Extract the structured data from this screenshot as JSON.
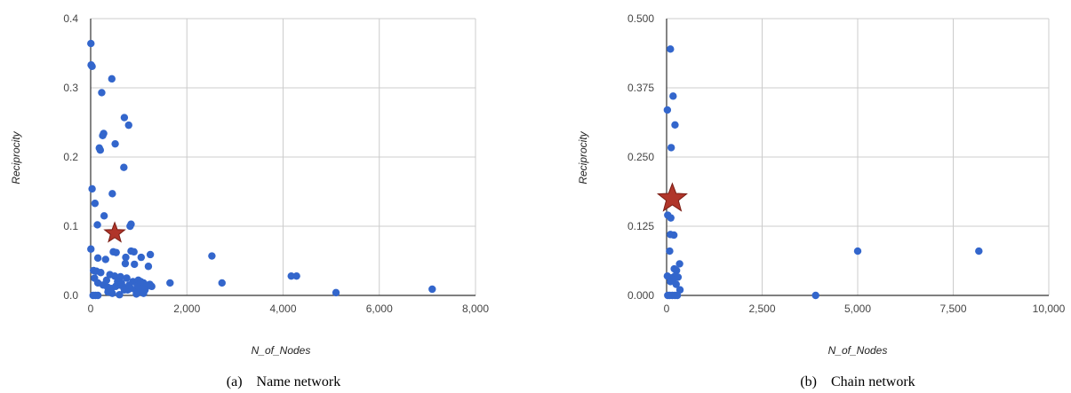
{
  "colors": {
    "point": "#3366cc",
    "star_fill": "#b0352a",
    "star_stroke": "#7a1d14",
    "grid": "#cccccc"
  },
  "chart_data": [
    {
      "type": "scatter",
      "caption": "(a)    Name network",
      "xlabel": "N_of_Nodes",
      "ylabel": "Reciprocity",
      "xlim": [
        0,
        8000
      ],
      "ylim": [
        0,
        0.4
      ],
      "x_ticks": [
        0,
        2000,
        4000,
        6000,
        8000
      ],
      "x_tick_labels": [
        "0",
        "2,000",
        "4,000",
        "6,000",
        "8,000"
      ],
      "y_ticks": [
        0,
        0.1,
        0.2,
        0.3,
        0.4
      ],
      "y_tick_labels": [
        "0.0",
        "0.1",
        "0.2",
        "0.3",
        "0.4"
      ],
      "grid": true,
      "points": [
        [
          5,
          0.364
        ],
        [
          10,
          0.333
        ],
        [
          30,
          0.331
        ],
        [
          440,
          0.313
        ],
        [
          230,
          0.293
        ],
        [
          700,
          0.257
        ],
        [
          790,
          0.246
        ],
        [
          270,
          0.234
        ],
        [
          250,
          0.231
        ],
        [
          510,
          0.219
        ],
        [
          180,
          0.213
        ],
        [
          200,
          0.21
        ],
        [
          690,
          0.185
        ],
        [
          30,
          0.154
        ],
        [
          450,
          0.147
        ],
        [
          90,
          0.133
        ],
        [
          280,
          0.115
        ],
        [
          840,
          0.103
        ],
        [
          820,
          0.1
        ],
        [
          140,
          0.102
        ],
        [
          5,
          0.067
        ],
        [
          840,
          0.064
        ],
        [
          900,
          0.063
        ],
        [
          470,
          0.063
        ],
        [
          530,
          0.062
        ],
        [
          1240,
          0.059
        ],
        [
          1050,
          0.055
        ],
        [
          730,
          0.055
        ],
        [
          150,
          0.054
        ],
        [
          310,
          0.052
        ],
        [
          720,
          0.046
        ],
        [
          910,
          0.045
        ],
        [
          1200,
          0.042
        ],
        [
          60,
          0.036
        ],
        [
          120,
          0.035
        ],
        [
          210,
          0.033
        ],
        [
          400,
          0.03
        ],
        [
          500,
          0.028
        ],
        [
          620,
          0.027
        ],
        [
          750,
          0.025
        ],
        [
          880,
          0.02
        ],
        [
          990,
          0.022
        ],
        [
          1100,
          0.018
        ],
        [
          1150,
          0.012
        ],
        [
          1230,
          0.016
        ],
        [
          80,
          0.025
        ],
        [
          150,
          0.018
        ],
        [
          260,
          0.015
        ],
        [
          350,
          0.012
        ],
        [
          430,
          0.01
        ],
        [
          520,
          0.013
        ],
        [
          600,
          0.015
        ],
        [
          680,
          0.012
        ],
        [
          770,
          0.008
        ],
        [
          830,
          0.01
        ],
        [
          940,
          0.007
        ],
        [
          1010,
          0.005
        ],
        [
          1080,
          0.01
        ],
        [
          1270,
          0.013
        ],
        [
          330,
          0.022
        ],
        [
          560,
          0.02
        ],
        [
          640,
          0.018
        ],
        [
          700,
          0.008
        ],
        [
          800,
          0.015
        ],
        [
          970,
          0.014
        ],
        [
          1040,
          0.02
        ],
        [
          1130,
          0.008
        ],
        [
          360,
          0.005
        ],
        [
          450,
          0.003
        ],
        [
          50,
          0.0
        ],
        [
          100,
          0.0
        ],
        [
          150,
          0.0
        ],
        [
          600,
          0.001
        ],
        [
          950,
          0.002
        ],
        [
          1100,
          0.003
        ],
        [
          1650,
          0.018
        ],
        [
          2520,
          0.057
        ],
        [
          2730,
          0.018
        ],
        [
          4170,
          0.028
        ],
        [
          4280,
          0.028
        ],
        [
          5100,
          0.004
        ],
        [
          7100,
          0.009
        ]
      ],
      "highlight": {
        "marker": "star",
        "x": 500,
        "y": 0.09
      }
    },
    {
      "type": "scatter",
      "caption": "(b)    Chain network",
      "xlabel": "N_of_Nodes",
      "ylabel": "Reciprocity",
      "xlim": [
        0,
        10000
      ],
      "ylim": [
        0,
        0.5
      ],
      "x_ticks": [
        0,
        2500,
        5000,
        7500,
        10000
      ],
      "x_tick_labels": [
        "0",
        "2,500",
        "5,000",
        "7,500",
        "10,000"
      ],
      "y_ticks": [
        0,
        0.125,
        0.25,
        0.375,
        0.5
      ],
      "y_tick_labels": [
        "0.000",
        "0.125",
        "0.250",
        "0.375",
        "0.500"
      ],
      "grid": true,
      "points": [
        [
          100,
          0.445
        ],
        [
          170,
          0.36
        ],
        [
          220,
          0.308
        ],
        [
          20,
          0.335
        ],
        [
          120,
          0.267
        ],
        [
          30,
          0.145
        ],
        [
          110,
          0.14
        ],
        [
          100,
          0.11
        ],
        [
          190,
          0.109
        ],
        [
          80,
          0.08
        ],
        [
          340,
          0.057
        ],
        [
          200,
          0.048
        ],
        [
          260,
          0.045
        ],
        [
          220,
          0.035
        ],
        [
          20,
          0.035
        ],
        [
          140,
          0.032
        ],
        [
          170,
          0.028
        ],
        [
          300,
          0.033
        ],
        [
          100,
          0.025
        ],
        [
          250,
          0.02
        ],
        [
          350,
          0.01
        ],
        [
          30,
          0.0
        ],
        [
          80,
          0.0
        ],
        [
          150,
          0.0
        ],
        [
          220,
          0.0
        ],
        [
          280,
          0.0
        ],
        [
          3900,
          0.0
        ],
        [
          5000,
          0.08
        ],
        [
          8170,
          0.08
        ]
      ],
      "highlight": {
        "marker": "star",
        "x": 150,
        "y": 0.175
      }
    }
  ]
}
